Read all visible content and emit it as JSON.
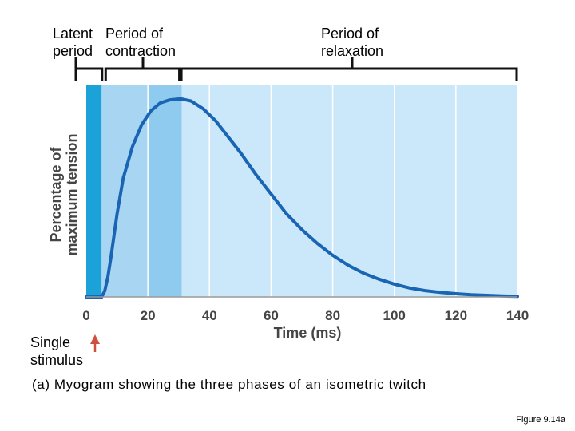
{
  "phase_labels": {
    "latent": "Latent\nperiod",
    "contraction": "Period of\ncontraction",
    "relaxation": "Period of\nrelaxation"
  },
  "stimulus": {
    "label": "Single\nstimulus"
  },
  "caption": "(a) Myogram showing the three phases of an isometric twitch",
  "figure_id": "Figure 9.14a",
  "colors": {
    "latent": "#1ba2d8",
    "contraction": "#8fcbef",
    "contraction_inner": "#a8d6f2",
    "relaxation": "#cbe8fa",
    "curve": "#1a64b4",
    "stimulus_arrow": "#d0503f"
  },
  "chart_data": {
    "type": "line",
    "title": "",
    "xlabel": "Time (ms)",
    "ylabel": "Percentage of maximum tension",
    "xlim": [
      0,
      140
    ],
    "ylim": [
      0,
      100
    ],
    "xticks": [
      0,
      20,
      40,
      60,
      80,
      100,
      120,
      140
    ],
    "xtick_labels": [
      "0",
      "20",
      "40",
      "60",
      "80",
      "100",
      "120",
      "140"
    ],
    "phases": [
      {
        "name": "latent",
        "start": 0,
        "end": 5
      },
      {
        "name": "contraction",
        "start": 5,
        "end": 31
      },
      {
        "name": "relaxation",
        "start": 31,
        "end": 140
      }
    ],
    "series": [
      {
        "name": "Tension",
        "x": [
          0,
          5,
          6,
          7,
          8,
          10,
          12,
          15,
          18,
          21,
          24,
          27,
          30,
          31,
          34,
          38,
          42,
          46,
          50,
          55,
          60,
          65,
          70,
          75,
          80,
          85,
          90,
          95,
          100,
          105,
          110,
          115,
          120,
          125,
          130,
          135,
          140
        ],
        "y": [
          0,
          0,
          3,
          10,
          20,
          42,
          60,
          76,
          87,
          94,
          98,
          99.5,
          100,
          100,
          99,
          95,
          89,
          81,
          73,
          62,
          52,
          42,
          34,
          27,
          21,
          16,
          12,
          9,
          6.5,
          4.5,
          3.2,
          2.3,
          1.6,
          1.1,
          0.8,
          0.5,
          0.3
        ]
      }
    ]
  }
}
